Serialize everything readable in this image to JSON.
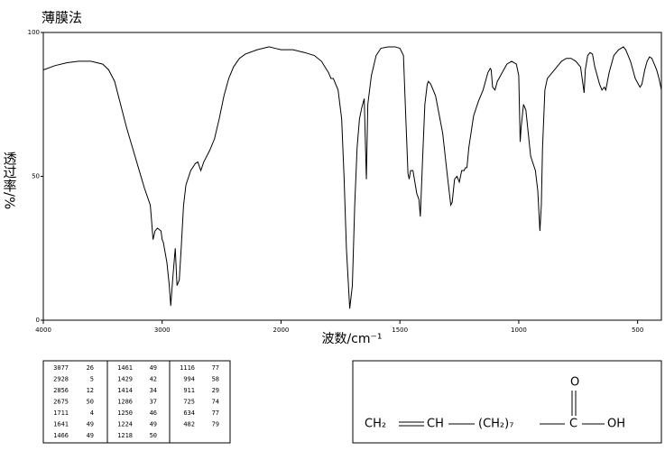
{
  "chart_data": {
    "type": "line",
    "title": "薄膜法",
    "x_label": "波数/cm⁻¹",
    "y_label": "透过率/%",
    "xlim": [
      4000,
      400
    ],
    "x_scale_change": 2000,
    "ylim": [
      0,
      100
    ],
    "xticks": [
      4000,
      3000,
      2000,
      1500,
      1000,
      500
    ],
    "yticks": [
      0,
      50,
      100
    ],
    "color": "#000000",
    "grid": false,
    "x": [
      4000,
      3900,
      3800,
      3700,
      3600,
      3500,
      3450,
      3400,
      3350,
      3300,
      3250,
      3200,
      3150,
      3100,
      3090,
      3077,
      3060,
      3040,
      3010,
      3000,
      2990,
      2960,
      2940,
      2928,
      2910,
      2890,
      2875,
      2856,
      2840,
      2820,
      2800,
      2760,
      2720,
      2700,
      2675,
      2650,
      2600,
      2560,
      2520,
      2480,
      2440,
      2400,
      2350,
      2300,
      2200,
      2100,
      2050,
      2000,
      1950,
      1900,
      1860,
      1830,
      1800,
      1790,
      1780,
      1760,
      1745,
      1735,
      1725,
      1711,
      1700,
      1690,
      1680,
      1670,
      1660,
      1650,
      1641,
      1635,
      1620,
      1600,
      1580,
      1550,
      1520,
      1500,
      1485,
      1475,
      1466,
      1461,
      1455,
      1445,
      1429,
      1420,
      1414,
      1405,
      1395,
      1385,
      1380,
      1370,
      1350,
      1320,
      1300,
      1286,
      1280,
      1270,
      1260,
      1250,
      1240,
      1230,
      1224,
      1218,
      1210,
      1190,
      1170,
      1150,
      1130,
      1120,
      1116,
      1110,
      1100,
      1090,
      1070,
      1050,
      1030,
      1010,
      1000,
      994,
      990,
      980,
      970,
      960,
      950,
      930,
      920,
      911,
      905,
      900,
      890,
      880,
      860,
      840,
      820,
      800,
      780,
      760,
      740,
      730,
      725,
      720,
      710,
      700,
      690,
      680,
      660,
      650,
      640,
      634,
      620,
      600,
      580,
      560,
      550,
      530,
      510,
      490,
      482,
      470,
      460,
      450,
      440,
      420,
      410,
      400
    ],
    "values": [
      87,
      88.5,
      89.5,
      90,
      90,
      89,
      87,
      83,
      75,
      67,
      60,
      53,
      46,
      40,
      35,
      28,
      31,
      32,
      31,
      28,
      27,
      20,
      12,
      5,
      15,
      25,
      12,
      14,
      25,
      40,
      47,
      52,
      54.5,
      55,
      52,
      55,
      59,
      63,
      70,
      78,
      84,
      88,
      91,
      92.5,
      94,
      95,
      94.5,
      94,
      94,
      93,
      92,
      90,
      86,
      84,
      84,
      80,
      70,
      50,
      25,
      4,
      12,
      40,
      60,
      70,
      74,
      77,
      49,
      75,
      85,
      92,
      94.5,
      95,
      95,
      94.5,
      92,
      70,
      51,
      49,
      52,
      52,
      44,
      42,
      36,
      55,
      75,
      82,
      83,
      82,
      78,
      65,
      50,
      40,
      41,
      49,
      50,
      48,
      52,
      52,
      53,
      53,
      60,
      71,
      76,
      80,
      86,
      87.5,
      87,
      81,
      80,
      83,
      86,
      89,
      90,
      89,
      85,
      62,
      67,
      75,
      73,
      65,
      57,
      52,
      45,
      31,
      40,
      60,
      80,
      84,
      86,
      88,
      90,
      91,
      91,
      90,
      88,
      82,
      79,
      87,
      92,
      93,
      92.5,
      88,
      82,
      80,
      81,
      80,
      86,
      92,
      94,
      95,
      94,
      90,
      84,
      81,
      82,
      87,
      90,
      91.5,
      91,
      87,
      84,
      80
    ]
  },
  "peak_table": [
    [
      [
        3077,
        26
      ],
      [
        2928,
        5
      ],
      [
        2856,
        12
      ],
      [
        2675,
        50
      ],
      [
        1711,
        4
      ],
      [
        1641,
        49
      ],
      [
        1466,
        49
      ]
    ],
    [
      [
        1461,
        49
      ],
      [
        1429,
        42
      ],
      [
        1414,
        34
      ],
      [
        1286,
        37
      ],
      [
        1250,
        46
      ],
      [
        1224,
        49
      ],
      [
        1218,
        50
      ]
    ],
    [
      [
        1116,
        77
      ],
      [
        994,
        58
      ],
      [
        911,
        29
      ],
      [
        725,
        74
      ],
      [
        634,
        77
      ],
      [
        482,
        79
      ]
    ]
  ],
  "structure": {
    "groups": [
      "CH₂",
      "CH",
      "(CH₂)₇",
      "C",
      "OH"
    ],
    "carbonyl": "O"
  }
}
